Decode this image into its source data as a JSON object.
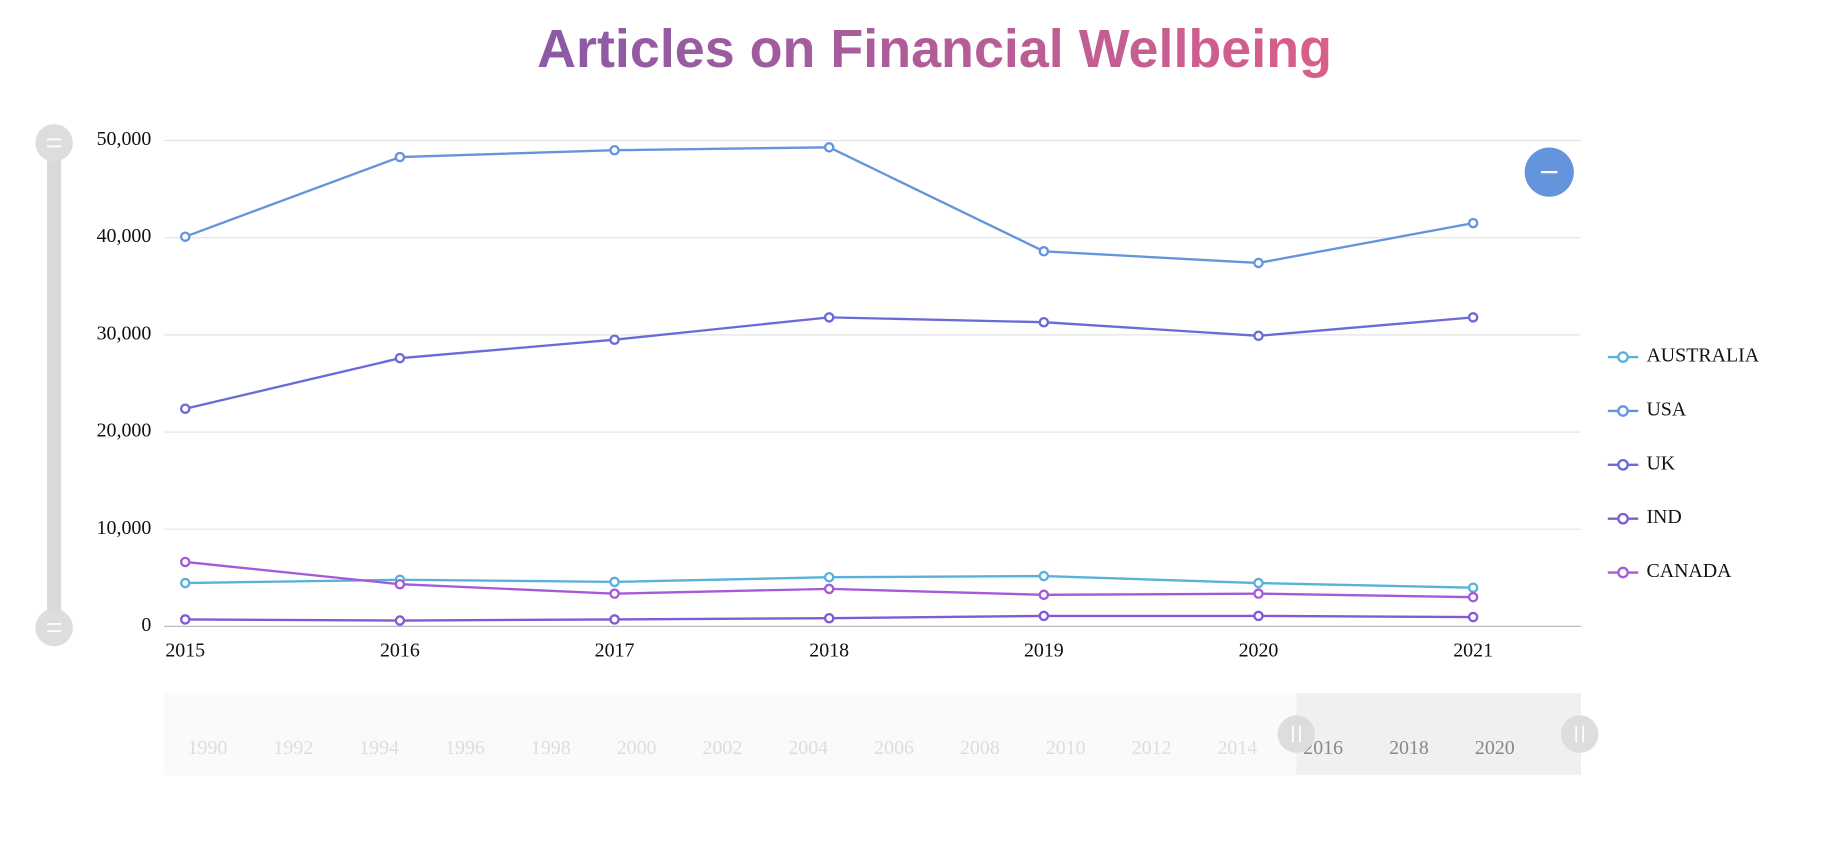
{
  "chart_data": {
    "type": "line",
    "title": "Articles on Financial Wellbeing",
    "categories": [
      "2015",
      "2016",
      "2017",
      "2018",
      "2019",
      "2020",
      "2021"
    ],
    "series": [
      {
        "name": "AUSTRALIA",
        "color": "#5ab1d8",
        "values": [
          4460,
          4800,
          4580,
          5060,
          5180,
          4460,
          3980
        ]
      },
      {
        "name": "USA",
        "color": "#6495dc",
        "values": [
          40100,
          48300,
          49000,
          49300,
          38600,
          37400,
          41500
        ]
      },
      {
        "name": "UK",
        "color": "#6a6bd8",
        "values": [
          22400,
          27600,
          29500,
          31800,
          31300,
          29900,
          31800
        ]
      },
      {
        "name": "IND",
        "color": "#7f5bd6",
        "values": [
          720,
          600,
          720,
          840,
          1080,
          1080,
          960
        ]
      },
      {
        "name": "CANADA",
        "color": "#a45bd8",
        "values": [
          6630,
          4340,
          3370,
          3860,
          3250,
          3370,
          3010
        ]
      }
    ],
    "ylim": [
      0,
      50000
    ],
    "yticks": [
      0,
      {
        "value": 10000,
        "label": "10,000"
      },
      {
        "value": 20000,
        "label": "20,000"
      },
      {
        "value": 30000,
        "label": "30,000"
      },
      {
        "value": 40000,
        "label": "40,000"
      },
      {
        "value": 50000,
        "label": "50,000"
      }
    ],
    "grid": true,
    "legend": "right",
    "navigator_labels": [
      "1990",
      "1992",
      "1994",
      "1996",
      "1998",
      "2000",
      "2002",
      "2004",
      "2006",
      "2008",
      "2010",
      "2012",
      "2014",
      "2016",
      "2018",
      "2020"
    ]
  }
}
